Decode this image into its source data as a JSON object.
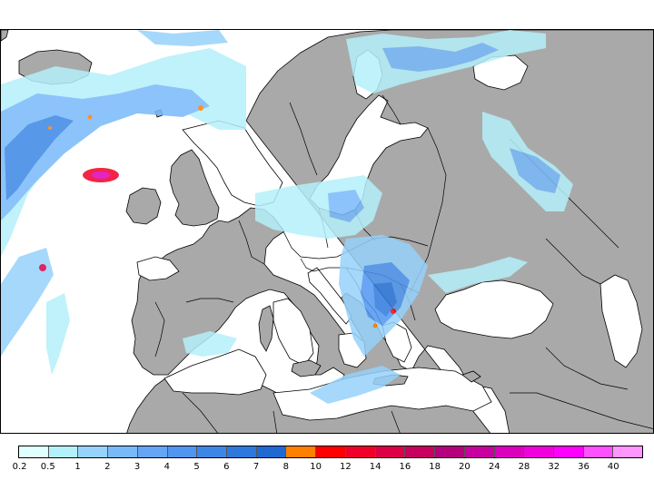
{
  "map": {
    "land_color": "#a9a9a9",
    "sea_color": "#ffffff",
    "border_color": "#000000"
  },
  "legend": {
    "colors": [
      "#e0ffff",
      "#b4f0fa",
      "#96d2fa",
      "#78b9fa",
      "#64a5f5",
      "#5096f0",
      "#3c87e6",
      "#2d78dc",
      "#1e69d2",
      "#ff7f00",
      "#ff0000",
      "#f00028",
      "#dc0046",
      "#c8005f",
      "#b4007d",
      "#c800a0",
      "#dc00be",
      "#f000dc",
      "#ff00ff",
      "#ff50ff",
      "#ff96ff"
    ],
    "labels": [
      "0.2",
      "0.5",
      "1",
      "2",
      "3",
      "4",
      "5",
      "6",
      "7",
      "8",
      "10",
      "12",
      "14",
      "16",
      "18",
      "20",
      "24",
      "28",
      "32",
      "36",
      "40"
    ]
  }
}
